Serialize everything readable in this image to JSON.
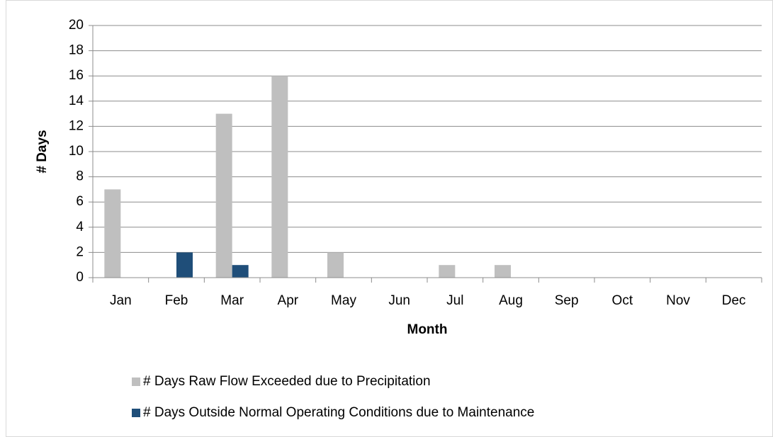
{
  "chart_data": {
    "type": "bar",
    "x_label": "Month",
    "y_label": "# Days",
    "categories": [
      "Jan",
      "Feb",
      "Mar",
      "Apr",
      "May",
      "Jun",
      "Jul",
      "Aug",
      "Sep",
      "Oct",
      "Nov",
      "Dec"
    ],
    "series": [
      {
        "name": "# Days Raw Flow Exceeded due to Precipitation",
        "color": "#bfbfbf",
        "values": [
          7,
          0,
          13,
          16,
          2,
          0,
          1,
          1,
          0,
          0,
          0,
          0
        ]
      },
      {
        "name": "# Days Outside Normal Operating Conditions due to Maintenance",
        "color": "#1f4e79",
        "values": [
          0,
          2,
          1,
          0,
          0,
          0,
          0,
          0,
          0,
          0,
          0,
          0
        ]
      }
    ],
    "ylim": [
      0,
      20
    ],
    "yticks": [
      0,
      2,
      4,
      6,
      8,
      10,
      12,
      14,
      16,
      18,
      20
    ],
    "grid": true
  }
}
